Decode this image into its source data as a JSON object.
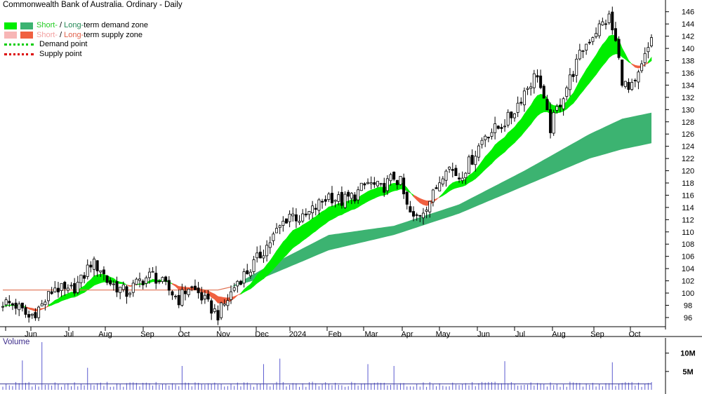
{
  "title": "Commonwealth Bank of Australia. Ordinary - Daily",
  "legend": {
    "demand": {
      "short": "Short-",
      "sep": " / ",
      "long": "Long-",
      "rest": "term demand zone"
    },
    "supply": {
      "short": "Short-",
      "sep": " / ",
      "long": "Long-",
      "rest": "term supply zone"
    },
    "demand_point": "Demand point",
    "supply_point": "Supply point"
  },
  "volume_label": "Volume",
  "colors": {
    "short_demand": "#00ee00",
    "long_demand": "#3cb371",
    "short_supply": "#f7b6b6",
    "long_supply": "#f06040",
    "demand_point": "#00cc00",
    "supply_point": "#dd0000",
    "volume_bar": "#5b5bd0"
  },
  "chart_data": {
    "type": "line",
    "title": "Commonwealth Bank of Australia. Ordinary - Daily",
    "x_labels": [
      "Jun",
      "Jul",
      "Aug",
      "Sep",
      "Oct",
      "Nov",
      "Dec",
      "2024",
      "Feb",
      "Mar",
      "Apr",
      "May",
      "Jun",
      "Jul",
      "Aug",
      "Sep",
      "Oct"
    ],
    "y_ticks": [
      96,
      98,
      100,
      102,
      104,
      106,
      108,
      110,
      112,
      114,
      116,
      118,
      120,
      122,
      124,
      126,
      128,
      130,
      132,
      134,
      136,
      138,
      140,
      142,
      144,
      146
    ],
    "ylim": [
      94.5,
      147
    ],
    "volume_ticks": [
      "5M",
      "10M"
    ],
    "price_anchors": [
      [
        0,
        98.5
      ],
      [
        4,
        98
      ],
      [
        8,
        96
      ],
      [
        12,
        98
      ],
      [
        16,
        101
      ],
      [
        20,
        100
      ],
      [
        24,
        102
      ],
      [
        27,
        105
      ],
      [
        30,
        104
      ],
      [
        32,
        102
      ],
      [
        35,
        101
      ],
      [
        38,
        100
      ],
      [
        42,
        102
      ],
      [
        46,
        103
      ],
      [
        50,
        101
      ],
      [
        54,
        99
      ],
      [
        57,
        101
      ],
      [
        60,
        100
      ],
      [
        63,
        98
      ],
      [
        66,
        96.5
      ],
      [
        69,
        99
      ],
      [
        72,
        102
      ],
      [
        76,
        104
      ],
      [
        80,
        107
      ],
      [
        84,
        110
      ],
      [
        88,
        113
      ],
      [
        92,
        112
      ],
      [
        96,
        114
      ],
      [
        100,
        116
      ],
      [
        104,
        115
      ],
      [
        108,
        116
      ],
      [
        112,
        118
      ],
      [
        116,
        117
      ],
      [
        120,
        119
      ],
      [
        122,
        118
      ],
      [
        124,
        114
      ],
      [
        126,
        112
      ],
      [
        128,
        113
      ],
      [
        132,
        116
      ],
      [
        136,
        121
      ],
      [
        140,
        119
      ],
      [
        144,
        122
      ],
      [
        148,
        126
      ],
      [
        152,
        127
      ],
      [
        156,
        129
      ],
      [
        160,
        133
      ],
      [
        164,
        136
      ],
      [
        166,
        131
      ],
      [
        168,
        127
      ],
      [
        170,
        130
      ],
      [
        174,
        135
      ],
      [
        178,
        140
      ],
      [
        182,
        143
      ],
      [
        186,
        145
      ],
      [
        188,
        141
      ],
      [
        190,
        135
      ],
      [
        192,
        133
      ],
      [
        194,
        134
      ],
      [
        196,
        137
      ],
      [
        198,
        140
      ],
      [
        199,
        142
      ]
    ],
    "long_term_demand_zone": {
      "upper": [
        [
          0,
          100.5
        ],
        [
          66,
          100.5
        ],
        [
          70,
          101
        ],
        [
          80,
          104
        ],
        [
          100,
          109.5
        ],
        [
          120,
          111
        ],
        [
          140,
          114.5
        ],
        [
          160,
          120
        ],
        [
          180,
          126
        ],
        [
          190,
          128.5
        ],
        [
          199,
          129.5
        ]
      ],
      "lower": [
        [
          0,
          100.5
        ],
        [
          66,
          100.5
        ],
        [
          70,
          101
        ],
        [
          80,
          102.5
        ],
        [
          100,
          107
        ],
        [
          120,
          109.5
        ],
        [
          140,
          113
        ],
        [
          160,
          117.5
        ],
        [
          180,
          122
        ],
        [
          190,
          123.5
        ],
        [
          199,
          124.5
        ]
      ]
    },
    "volume_peaks": [
      [
        6,
        8
      ],
      [
        12,
        13
      ],
      [
        26,
        6
      ],
      [
        55,
        6.5
      ],
      [
        80,
        7
      ],
      [
        85,
        8.5
      ],
      [
        112,
        7
      ],
      [
        120,
        6.5
      ],
      [
        154,
        7.8
      ],
      [
        187,
        7.5
      ]
    ]
  }
}
